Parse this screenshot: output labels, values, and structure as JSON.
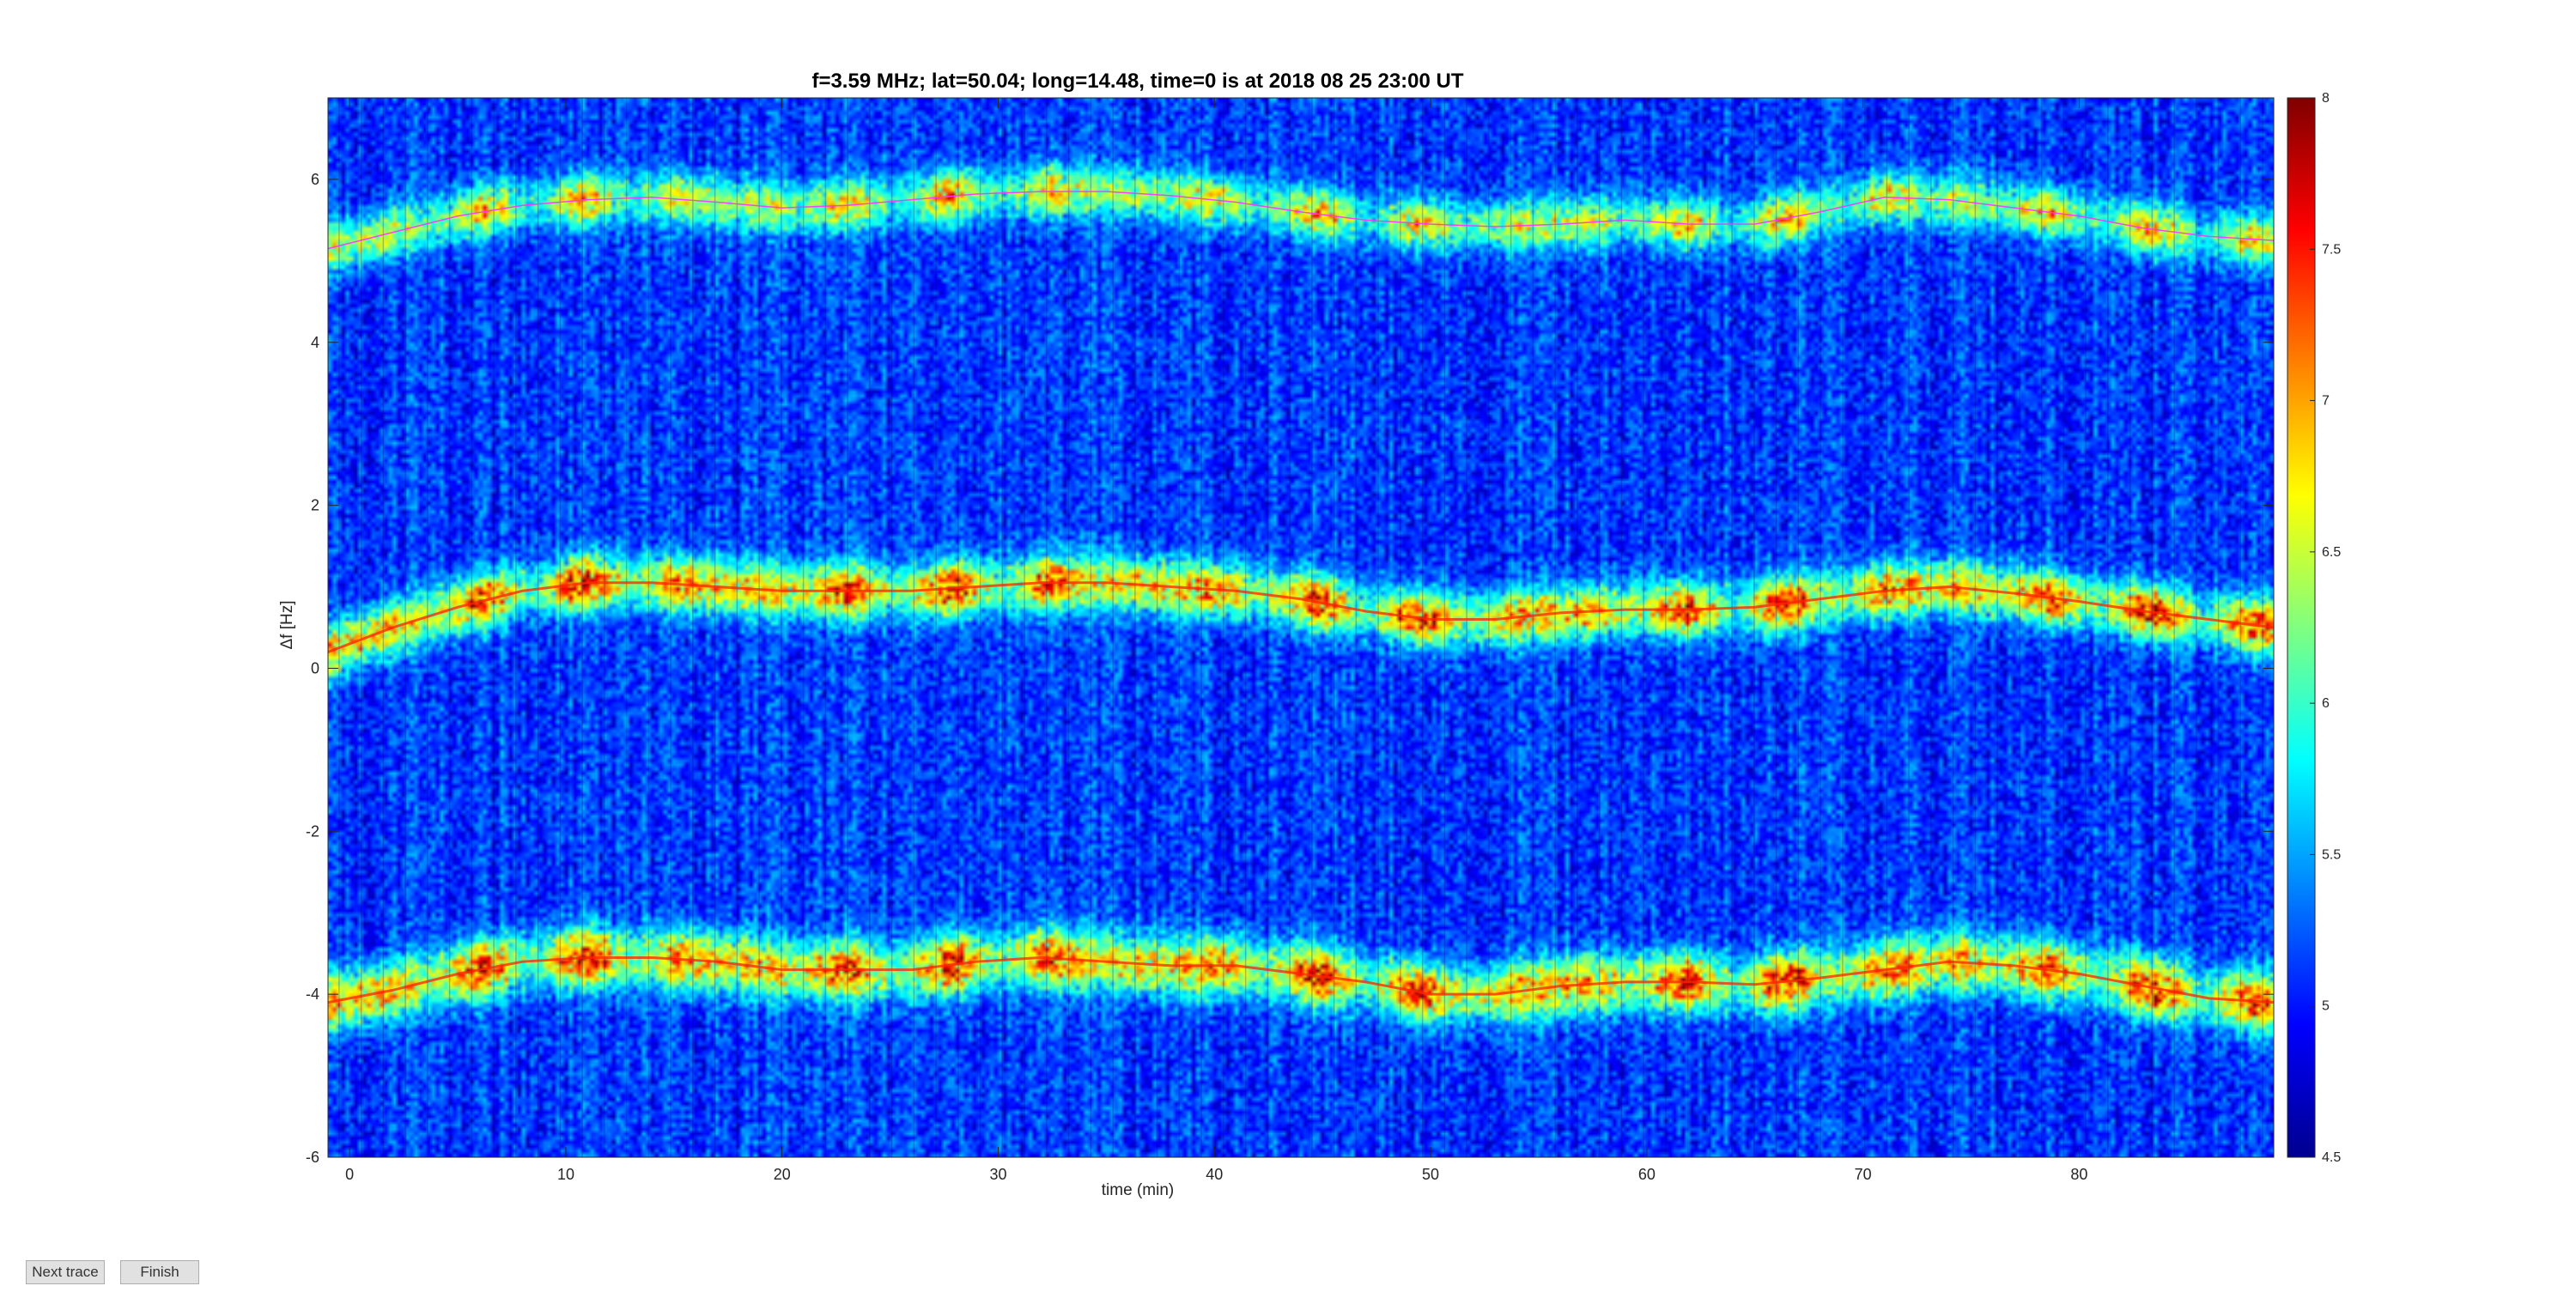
{
  "chart_data": {
    "type": "heatmap",
    "title": "f=3.59 MHz;  lat=50.04; long=14.48, time=0 is at 2018 08 25 23:00 UT",
    "xlabel": "time (min)",
    "ylabel": "Δf [Hz]",
    "xlim": [
      -1,
      89
    ],
    "ylim": [
      -6,
      7
    ],
    "xticks": [
      0,
      10,
      20,
      30,
      40,
      50,
      60,
      70,
      80
    ],
    "yticks": [
      -6,
      -4,
      -2,
      0,
      2,
      4,
      6
    ],
    "colorbar": {
      "range": [
        4.5,
        8
      ],
      "ticks": [
        "4.5",
        "5",
        "5.5",
        "6",
        "6.5",
        "7",
        "7.5",
        "8"
      ],
      "colormap": "jet"
    },
    "colors": {
      "trace": "#ff33ff",
      "background_low": "#00008f",
      "high": "#800000"
    },
    "series": [
      {
        "x": [
          -1,
          2,
          5,
          8,
          11,
          14,
          17,
          20,
          23,
          26,
          29,
          32,
          35,
          38,
          41,
          44,
          47,
          50,
          53,
          56,
          59,
          62,
          65,
          68,
          71,
          74,
          77,
          80,
          83,
          86,
          89
        ],
        "values": [
          5.15,
          5.35,
          5.55,
          5.68,
          5.75,
          5.78,
          5.72,
          5.65,
          5.68,
          5.75,
          5.82,
          5.85,
          5.85,
          5.8,
          5.72,
          5.6,
          5.5,
          5.45,
          5.42,
          5.45,
          5.5,
          5.45,
          5.45,
          5.6,
          5.78,
          5.75,
          5.65,
          5.55,
          5.4,
          5.3,
          5.25
        ]
      },
      {
        "x": [
          -1,
          2,
          5,
          8,
          11,
          14,
          17,
          20,
          23,
          26,
          29,
          32,
          35,
          38,
          41,
          44,
          47,
          50,
          53,
          56,
          59,
          62,
          65,
          68,
          71,
          74,
          77,
          80,
          83,
          86,
          89
        ],
        "values": [
          0.2,
          0.5,
          0.75,
          0.95,
          1.05,
          1.05,
          1.0,
          0.95,
          0.95,
          0.95,
          1.0,
          1.05,
          1.05,
          1.0,
          0.95,
          0.85,
          0.7,
          0.6,
          0.6,
          0.68,
          0.72,
          0.72,
          0.75,
          0.85,
          0.95,
          1.0,
          0.92,
          0.82,
          0.7,
          0.6,
          0.5
        ]
      },
      {
        "x": [
          -1,
          2,
          5,
          8,
          11,
          14,
          17,
          20,
          23,
          26,
          29,
          32,
          35,
          38,
          41,
          44,
          47,
          50,
          53,
          56,
          59,
          62,
          65,
          68,
          71,
          74,
          77,
          80,
          83,
          86,
          89
        ],
        "values": [
          -4.1,
          -3.95,
          -3.75,
          -3.6,
          -3.55,
          -3.55,
          -3.6,
          -3.7,
          -3.7,
          -3.7,
          -3.6,
          -3.55,
          -3.6,
          -3.65,
          -3.65,
          -3.75,
          -3.85,
          -4.0,
          -4.0,
          -3.9,
          -3.85,
          -3.85,
          -3.88,
          -3.8,
          -3.7,
          -3.6,
          -3.65,
          -3.75,
          -3.9,
          -4.05,
          -4.1
        ]
      }
    ]
  },
  "buttons": {
    "next_label": "Next trace",
    "finish_label": "Finish"
  }
}
